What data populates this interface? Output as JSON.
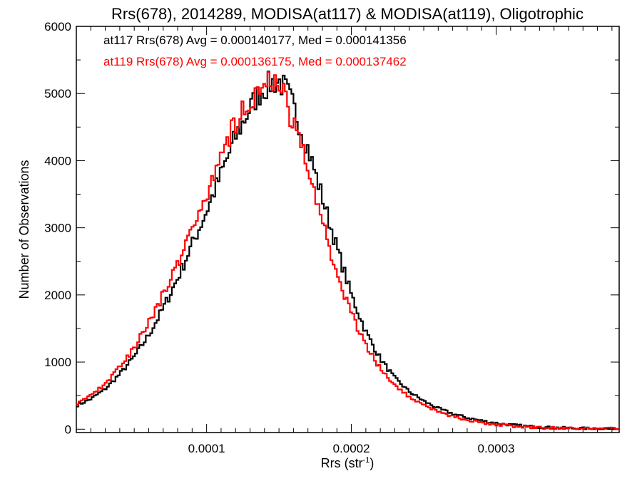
{
  "chart_data": {
    "type": "line",
    "style": "histogram-step",
    "title": "Rrs(678), 2014289, MODISA(at117) & MODISA(at119), Oligotrophic",
    "xlabel": "Rrs (str",
    "xlabel_sup": "-1",
    "xlabel_end": ")",
    "ylabel": "Number of Observations",
    "xlim": [
      1e-05,
      0.000385
    ],
    "ylim": [
      -50,
      6000
    ],
    "x_ticks": [
      0.0001,
      0.0002,
      0.0003
    ],
    "x_tick_labels": [
      "0.0001",
      "0.0002",
      "0.0003"
    ],
    "y_ticks": [
      0,
      1000,
      2000,
      3000,
      4000,
      5000,
      6000
    ],
    "y_tick_labels": [
      "0",
      "1000",
      "2000",
      "3000",
      "4000",
      "5000",
      "6000"
    ],
    "grid": false,
    "legend_position": "top-left",
    "series": [
      {
        "name": "at117 Rrs(678) Avg = 0.000140177, Med = 0.000141356",
        "color": "#000000",
        "x": [
          1e-05,
          2e-05,
          3e-05,
          4e-05,
          5e-05,
          6e-05,
          7e-05,
          8e-05,
          9e-05,
          0.0001,
          0.00011,
          0.00012,
          0.00013,
          0.000135,
          0.00014,
          0.000145,
          0.00015,
          0.000155,
          0.00016,
          0.00017,
          0.00018,
          0.00019,
          0.0002,
          0.00021,
          0.00022,
          0.00023,
          0.00024,
          0.00025,
          0.00026,
          0.00027,
          0.00028,
          0.00029,
          0.0003,
          0.00031,
          0.00032,
          0.00033,
          0.00034,
          0.00035,
          0.00036,
          0.00037,
          0.000385
        ],
        "values": [
          350,
          450,
          600,
          820,
          1080,
          1400,
          1800,
          2250,
          2750,
          3250,
          3800,
          4350,
          4780,
          4960,
          5080,
          5160,
          5180,
          5050,
          4800,
          4180,
          3450,
          2700,
          2000,
          1450,
          1050,
          760,
          560,
          420,
          310,
          230,
          170,
          125,
          90,
          65,
          45,
          30,
          22,
          15,
          10,
          6,
          4
        ]
      },
      {
        "name": "at119 Rrs(678) Avg = 0.000136175, Med = 0.000137462",
        "color": "#ff0000",
        "x": [
          1e-05,
          2e-05,
          3e-05,
          4e-05,
          5e-05,
          6e-05,
          7e-05,
          8e-05,
          9e-05,
          0.0001,
          0.00011,
          0.00012,
          0.00013,
          0.000135,
          0.00014,
          0.000145,
          0.00015,
          0.000155,
          0.00016,
          0.00017,
          0.00018,
          0.00019,
          0.0002,
          0.00021,
          0.00022,
          0.00023,
          0.00024,
          0.00025,
          0.00026,
          0.00027,
          0.00028,
          0.00029,
          0.0003,
          0.00031,
          0.00032,
          0.00033,
          0.00034,
          0.00035,
          0.00036,
          0.00037,
          0.000385
        ],
        "values": [
          380,
          500,
          680,
          920,
          1220,
          1580,
          2000,
          2480,
          2980,
          3500,
          4080,
          4580,
          4930,
          5050,
          5120,
          5150,
          5100,
          4880,
          4550,
          3850,
          3050,
          2320,
          1720,
          1250,
          900,
          650,
          480,
          360,
          260,
          190,
          140,
          100,
          72,
          50,
          35,
          24,
          17,
          12,
          8,
          5,
          3
        ]
      }
    ]
  }
}
